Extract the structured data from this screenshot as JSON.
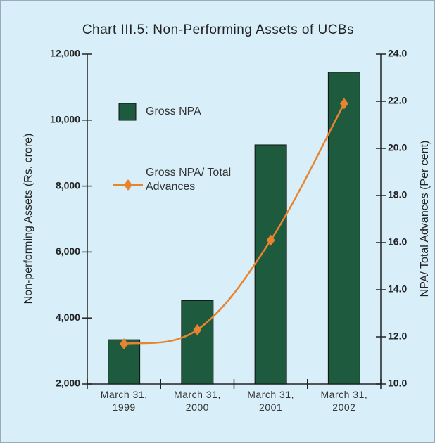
{
  "chart_data": {
    "type": "bar-line",
    "title": "Chart III.5: Non-Performing Assets of UCBs",
    "y_label": "Non-performing Assets (Rs. crore)",
    "y2_label": "NPA/ Total Advances (Per cent)",
    "categories": [
      "March 31, 1999",
      "March 31, 2000",
      "March 31, 2001",
      "March 31, 2002"
    ],
    "series": [
      {
        "name": "Gross NPA",
        "type": "bar",
        "color": "#1e5b3e",
        "values": [
          3340,
          4530,
          9250,
          11450
        ]
      },
      {
        "name": "Gross NPA/ Total Advances",
        "type": "line",
        "axis": "y2",
        "color": "#e8842e",
        "values": [
          11.7,
          12.3,
          16.1,
          21.9
        ]
      }
    ],
    "ylim": [
      2000,
      12000
    ],
    "yticks": [
      {
        "value": 2000,
        "label": "2,000"
      },
      {
        "value": 4000,
        "label": "4,000"
      },
      {
        "value": 6000,
        "label": "6,000"
      },
      {
        "value": 8000,
        "label": "8,000"
      },
      {
        "value": 10000,
        "label": "10,000"
      },
      {
        "value": 12000,
        "label": "12,000"
      }
    ],
    "y2lim": [
      10,
      24
    ],
    "y2ticks": [
      {
        "value": 10,
        "label": "10.0"
      },
      {
        "value": 12,
        "label": "12.0"
      },
      {
        "value": 14,
        "label": "14.0"
      },
      {
        "value": 16,
        "label": "16.0"
      },
      {
        "value": 18,
        "label": "18.0"
      },
      {
        "value": 20,
        "label": "20.0"
      },
      {
        "value": 22,
        "label": "22.0"
      },
      {
        "value": 24,
        "label": "24.0"
      }
    ]
  }
}
